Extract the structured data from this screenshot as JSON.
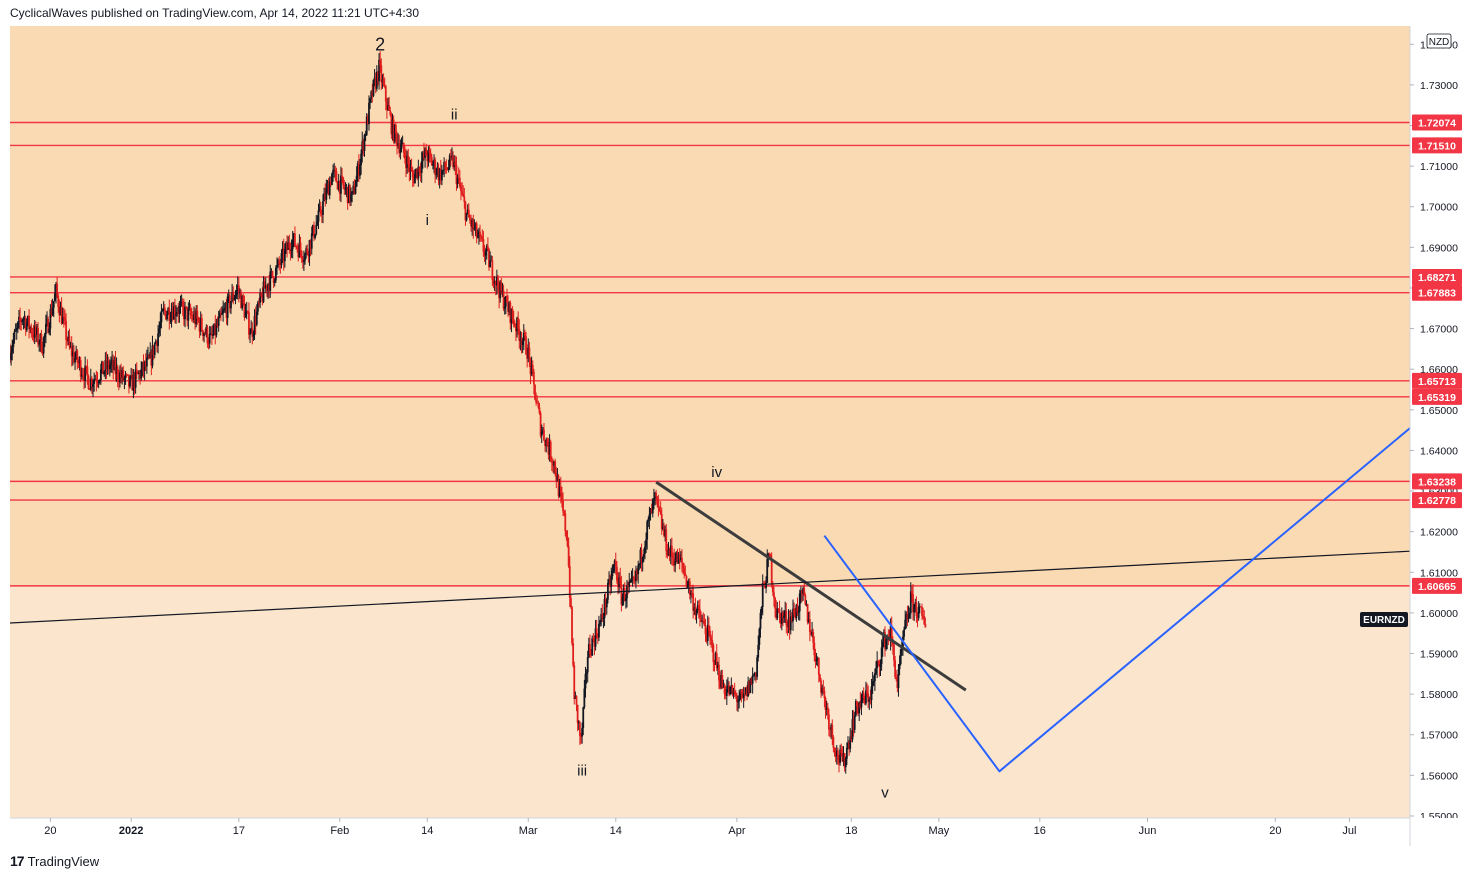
{
  "header": {
    "published": "CyclicalWaves published on TradingView.com, Apr 14, 2022 11:21 UTC+4:30"
  },
  "footer": {
    "logo_glyph": "17",
    "brand": "TradingView"
  },
  "colors": {
    "zone_upper": "#fadab3",
    "zone_lower": "#fbe6cd",
    "levels": "#f23645",
    "candle_up": "#131722",
    "candle_down": "#e01e1e",
    "forecast": "#2962ff",
    "trendline": "#3c3c3c"
  },
  "chart_data": {
    "type": "candlestick",
    "symbol": "EURNZD",
    "currency": "NZD",
    "ylim": [
      1.5495,
      1.7445
    ],
    "xlim": [
      "2021-12-14",
      "2022-07-10"
    ],
    "y_ticks": [
      "1.55000",
      "1.56000",
      "1.57000",
      "1.58000",
      "1.59000",
      "1.60000",
      "1.61000",
      "1.62000",
      "1.63000",
      "1.64000",
      "1.65000",
      "1.66000",
      "1.67000",
      "1.68000",
      "1.69000",
      "1.70000",
      "1.71000",
      "1.72000",
      "1.73000",
      "1.74000"
    ],
    "x_ticks": [
      {
        "date": "2021-12-20",
        "label": "20"
      },
      {
        "date": "2022-01-01",
        "label": "2022"
      },
      {
        "date": "2022-01-17",
        "label": "17"
      },
      {
        "date": "2022-02-01",
        "label": "Feb"
      },
      {
        "date": "2022-02-14",
        "label": "14"
      },
      {
        "date": "2022-03-01",
        "label": "Mar"
      },
      {
        "date": "2022-03-14",
        "label": "14"
      },
      {
        "date": "2022-04-01",
        "label": "Apr"
      },
      {
        "date": "2022-04-18",
        "label": "18"
      },
      {
        "date": "2022-05-01",
        "label": "May"
      },
      {
        "date": "2022-05-16",
        "label": "16"
      },
      {
        "date": "2022-06-01",
        "label": "Jun"
      },
      {
        "date": "2022-06-20",
        "label": "20"
      },
      {
        "date": "2022-07-01",
        "label": "Jul"
      }
    ],
    "horizontal_levels": [
      "1.72074",
      "1.71510",
      "1.68271",
      "1.67883",
      "1.65713",
      "1.65319",
      "1.63238",
      "1.62778",
      "1.60665"
    ],
    "price_path": [
      [
        "2021-12-14",
        1.664
      ],
      [
        "2021-12-16",
        1.673
      ],
      [
        "2021-12-19",
        1.666
      ],
      [
        "2021-12-21",
        1.679
      ],
      [
        "2021-12-23",
        1.665
      ],
      [
        "2021-12-26",
        1.657
      ],
      [
        "2021-12-29",
        1.661
      ],
      [
        "2022-01-01",
        1.656
      ],
      [
        "2022-01-04",
        1.662
      ],
      [
        "2022-01-06",
        1.674
      ],
      [
        "2022-01-08",
        1.675
      ],
      [
        "2022-01-11",
        1.672
      ],
      [
        "2022-01-13",
        1.667
      ],
      [
        "2022-01-15",
        1.674
      ],
      [
        "2022-01-17",
        1.68
      ],
      [
        "2022-01-19",
        1.669
      ],
      [
        "2022-01-21",
        1.68
      ],
      [
        "2022-01-23",
        1.685
      ],
      [
        "2022-01-25",
        1.692
      ],
      [
        "2022-01-27",
        1.688
      ],
      [
        "2022-01-29",
        1.697
      ],
      [
        "2022-01-31",
        1.708
      ],
      [
        "2022-02-03",
        1.702
      ],
      [
        "2022-02-04",
        1.71
      ],
      [
        "2022-02-06",
        1.728
      ],
      [
        "2022-02-07",
        1.734
      ],
      [
        "2022-02-09",
        1.719
      ],
      [
        "2022-02-11",
        1.712
      ],
      [
        "2022-02-12",
        1.707
      ],
      [
        "2022-02-14",
        1.713
      ],
      [
        "2022-02-16",
        1.708
      ],
      [
        "2022-02-18",
        1.711
      ],
      [
        "2022-02-20",
        1.698
      ],
      [
        "2022-02-23",
        1.688
      ],
      [
        "2022-02-25",
        1.679
      ],
      [
        "2022-02-27",
        1.672
      ],
      [
        "2022-03-01",
        1.665
      ],
      [
        "2022-03-03",
        1.646
      ],
      [
        "2022-03-05",
        1.637
      ],
      [
        "2022-03-07",
        1.618
      ],
      [
        "2022-03-08",
        1.58
      ],
      [
        "2022-03-09",
        1.568
      ],
      [
        "2022-03-10",
        1.59
      ],
      [
        "2022-03-12",
        1.598
      ],
      [
        "2022-03-14",
        1.612
      ],
      [
        "2022-03-15",
        1.604
      ],
      [
        "2022-03-17",
        1.607
      ],
      [
        "2022-03-19",
        1.622
      ],
      [
        "2022-03-20",
        1.628
      ],
      [
        "2022-03-22",
        1.615
      ],
      [
        "2022-03-24",
        1.612
      ],
      [
        "2022-03-26",
        1.601
      ],
      [
        "2022-03-28",
        1.594
      ],
      [
        "2022-03-30",
        1.582
      ],
      [
        "2022-04-02",
        1.578
      ],
      [
        "2022-04-04",
        1.586
      ],
      [
        "2022-04-05",
        1.605
      ],
      [
        "2022-04-06",
        1.614
      ],
      [
        "2022-04-07",
        1.6
      ],
      [
        "2022-04-09",
        1.598
      ],
      [
        "2022-04-11",
        1.604
      ],
      [
        "2022-04-12",
        1.597
      ],
      [
        "2022-04-14",
        1.58
      ],
      [
        "2022-04-16",
        1.565
      ],
      [
        "2022-04-17",
        1.563
      ],
      [
        "2022-04-19",
        1.577
      ],
      [
        "2022-04-21",
        1.58
      ],
      [
        "2022-04-23",
        1.593
      ],
      [
        "2022-04-24",
        1.595
      ],
      [
        "2022-04-25",
        1.582
      ],
      [
        "2022-04-26",
        1.595
      ],
      [
        "2022-04-27",
        1.603
      ],
      [
        "2022-04-29",
        1.598
      ]
    ],
    "annotations": [
      {
        "text": "2",
        "date": "2022-02-07",
        "price": 1.7385
      },
      {
        "text": "ii",
        "date": "2022-02-18",
        "price": 1.7215
      },
      {
        "text": "i",
        "date": "2022-02-14",
        "price": 1.6955
      },
      {
        "text": "iii",
        "date": "2022-03-09",
        "price": 1.56
      },
      {
        "text": "iv",
        "date": "2022-03-29",
        "price": 1.6335
      },
      {
        "text": "v",
        "date": "2022-04-23",
        "price": 1.5545
      }
    ],
    "lines": [
      {
        "role": "trendline",
        "color": "#3c3c3c",
        "points": [
          [
            "2022-03-20",
            1.6322
          ],
          [
            "2022-05-05",
            1.581
          ]
        ]
      },
      {
        "role": "support",
        "color": "#131722",
        "points": [
          [
            "2021-12-14",
            1.5975
          ],
          [
            "2022-07-10",
            1.6152
          ]
        ]
      },
      {
        "role": "forecast",
        "color": "#2962ff",
        "points": [
          [
            "2022-04-14",
            1.619
          ],
          [
            "2022-05-10",
            1.561
          ],
          [
            "2022-07-10",
            1.6455
          ]
        ]
      }
    ],
    "zones": [
      {
        "from": 1.6066,
        "to": 1.7445,
        "color": "#fadab3"
      },
      {
        "from": 1.5495,
        "to": 1.6066,
        "color": "#fbe6cd"
      }
    ]
  }
}
